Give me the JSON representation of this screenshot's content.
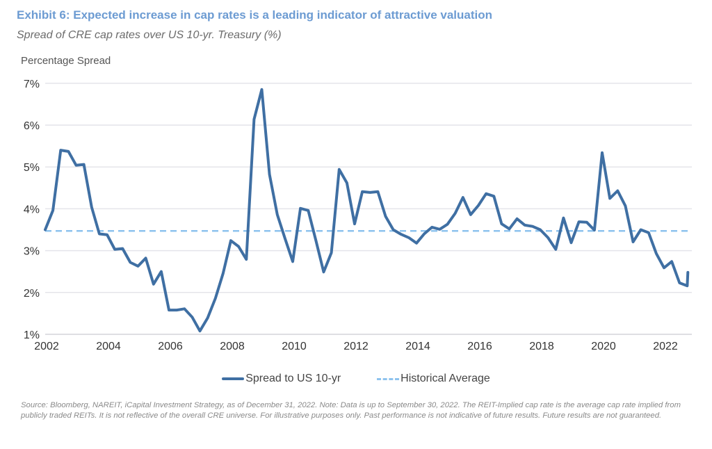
{
  "chart_data": {
    "type": "line",
    "title": "Exhibit 6: Expected increase in cap rates is a leading indicator of attractive valuation",
    "subtitle": "Spread of CRE cap rates over US 10-yr. Treasury (%)",
    "ylabel": "Percentage Spread",
    "xlabel": "",
    "ylim": [
      1,
      7
    ],
    "xlim": [
      2002,
      2022.9
    ],
    "grid": "horizontal",
    "legend_position": "bottom",
    "y_ticks": [
      "1%",
      "2%",
      "3%",
      "4%",
      "5%",
      "6%",
      "7%"
    ],
    "y_tick_values": [
      1,
      2,
      3,
      4,
      5,
      6,
      7
    ],
    "x_ticks": [
      "2002",
      "2004",
      "2006",
      "2008",
      "2010",
      "2012",
      "2014",
      "2016",
      "2018",
      "2020",
      "2022"
    ],
    "x_tick_values": [
      2002,
      2004,
      2006,
      2008,
      2010,
      2012,
      2014,
      2016,
      2018,
      2020,
      2022
    ],
    "series": [
      {
        "name": "Spread to US 10-yr",
        "color": "#3f6fa3",
        "style": "solid",
        "x": [
          2002,
          2002.25,
          2002.5,
          2002.75,
          2003,
          2003.25,
          2003.5,
          2003.75,
          2004,
          2004.25,
          2004.5,
          2004.75,
          2005,
          2005.25,
          2005.5,
          2005.75,
          2006,
          2006.25,
          2006.5,
          2006.75,
          2007,
          2007.25,
          2007.5,
          2007.75,
          2008,
          2008.25,
          2008.5,
          2008.75,
          2009,
          2009.25,
          2009.5,
          2009.75,
          2010,
          2010.25,
          2010.5,
          2010.75,
          2011,
          2011.25,
          2011.5,
          2011.75,
          2012,
          2012.25,
          2012.5,
          2012.75,
          2013,
          2013.25,
          2013.5,
          2013.75,
          2014,
          2014.25,
          2014.5,
          2014.75,
          2015,
          2015.25,
          2015.5,
          2015.75,
          2016,
          2016.25,
          2016.5,
          2016.75,
          2017,
          2017.25,
          2017.5,
          2017.75,
          2018,
          2018.25,
          2018.5,
          2018.75,
          2019,
          2019.25,
          2019.5,
          2019.75,
          2020,
          2020.25,
          2020.5,
          2020.75,
          2021,
          2021.25,
          2021.5,
          2021.75,
          2022,
          2022.25,
          2022.5,
          2022.75,
          2022.77
        ],
        "values": [
          3.5,
          3.96,
          5.4,
          5.37,
          5.04,
          5.06,
          4.04,
          3.4,
          3.38,
          3.03,
          3.05,
          2.72,
          2.63,
          2.82,
          2.2,
          2.5,
          1.58,
          1.58,
          1.61,
          1.41,
          1.08,
          1.39,
          1.86,
          2.46,
          3.24,
          3.1,
          2.79,
          6.14,
          6.85,
          4.82,
          3.86,
          3.29,
          2.74,
          4.01,
          3.96,
          3.24,
          2.49,
          2.95,
          4.94,
          4.62,
          3.64,
          4.41,
          4.39,
          4.41,
          3.82,
          3.5,
          3.39,
          3.31,
          3.18,
          3.4,
          3.56,
          3.51,
          3.63,
          3.89,
          4.27,
          3.86,
          4.08,
          4.36,
          4.3,
          3.64,
          3.52,
          3.76,
          3.61,
          3.58,
          3.5,
          3.31,
          3.03,
          3.78,
          3.19,
          3.69,
          3.68,
          3.49,
          5.34,
          4.25,
          4.43,
          4.07,
          3.21,
          3.5,
          3.43,
          2.93,
          2.59,
          2.74,
          2.23,
          2.16,
          2.48
        ]
      },
      {
        "name": "Historical Average",
        "color": "#8ec3ee",
        "style": "dashed",
        "value": 3.47
      }
    ]
  },
  "footnote": "Source: Bloomberg, NAREIT, iCapital Investment Strategy, as of December 31, 2022. Note: Data is up to September 30, 2022. The REIT-Implied cap rate is the average cap rate implied from publicly traded REITs. It is not reflective of the overall CRE universe. For illustrative purposes only. Past performance is not indicative of future results. Future results are not guaranteed."
}
